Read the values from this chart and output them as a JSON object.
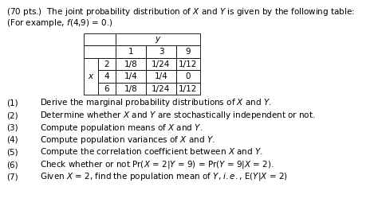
{
  "title_line1": "(70 pts.)  The joint probability distribution of $X$ and $Y$ is given by the following table:",
  "title_line2": "(For example, $f$(4,9) = 0.)",
  "col_headers": [
    "1",
    "3",
    "9"
  ],
  "row_x_vals": [
    "2",
    "4",
    "6"
  ],
  "cells": [
    [
      "1/8",
      "1/24",
      "1/12"
    ],
    [
      "1/4",
      "1/4",
      "0"
    ],
    [
      "1/8",
      "1/24",
      "1/12"
    ]
  ],
  "items": [
    [
      "(1)",
      "Derive the marginal probability distributions of $X$ and $Y$."
    ],
    [
      "(2)",
      "Determine whether $X$ and $Y$ are stochastically independent or not."
    ],
    [
      "(3)",
      "Compute population means of $X$ and $Y$."
    ],
    [
      "(4)",
      "Compute population variances of $X$ and $Y$."
    ],
    [
      "(5)",
      "Compute the correlation coefficient between $X$ and $Y$."
    ],
    [
      "(6)",
      "Check whether or not Pr($X$ = 2|$Y$ = 9) = Pr($Y$ = 9|$X$ = 2)."
    ],
    [
      "(7)",
      "Given $X$ = 2, find the population mean of $Y$, $i.e.$, E($Y$|$X$ = 2)"
    ]
  ],
  "font_size": 7.5,
  "bg_color": "#ffffff",
  "text_color": "#000000"
}
